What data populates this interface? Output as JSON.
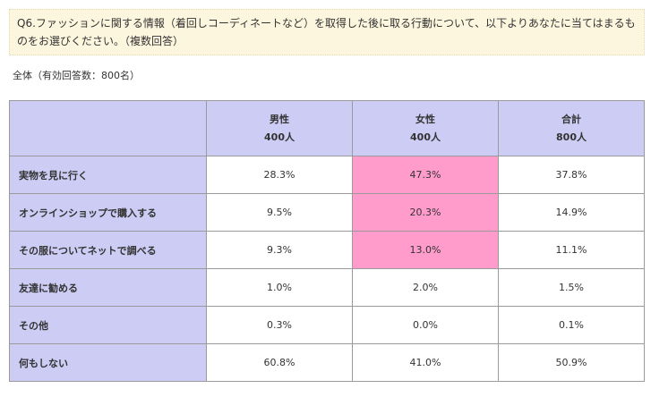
{
  "question": "Q6.ファッションに関する情報（着回しコーディネートなど）を取得した後に取る行動について、以下よりあなたに当てはまるものをお選びください。（複数回答）",
  "subtitle": "全体（有効回答数：800名）",
  "table": {
    "columns": [
      {
        "label": "男性",
        "count": "400人"
      },
      {
        "label": "女性",
        "count": "400人"
      },
      {
        "label": "合計",
        "count": "800人"
      }
    ],
    "rows": [
      {
        "label": "実物を見に行く",
        "values": [
          "28.3%",
          "47.3%",
          "37.8%"
        ],
        "highlight": [
          false,
          true,
          false
        ]
      },
      {
        "label": "オンラインショップで購入する",
        "values": [
          "9.5%",
          "20.3%",
          "14.9%"
        ],
        "highlight": [
          false,
          true,
          false
        ]
      },
      {
        "label": "その服についてネットで調べる",
        "values": [
          "9.3%",
          "13.0%",
          "11.1%"
        ],
        "highlight": [
          false,
          true,
          false
        ]
      },
      {
        "label": "友達に勧める",
        "values": [
          "1.0%",
          "2.0%",
          "1.5%"
        ],
        "highlight": [
          false,
          false,
          false
        ]
      },
      {
        "label": "その他",
        "values": [
          "0.3%",
          "0.0%",
          "0.1%"
        ],
        "highlight": [
          false,
          false,
          false
        ]
      },
      {
        "label": "何もしない",
        "values": [
          "60.8%",
          "41.0%",
          "50.9%"
        ],
        "highlight": [
          false,
          false,
          false
        ]
      }
    ],
    "highlight_color": "#ff9ccc",
    "header_color": "#ccccf5"
  }
}
